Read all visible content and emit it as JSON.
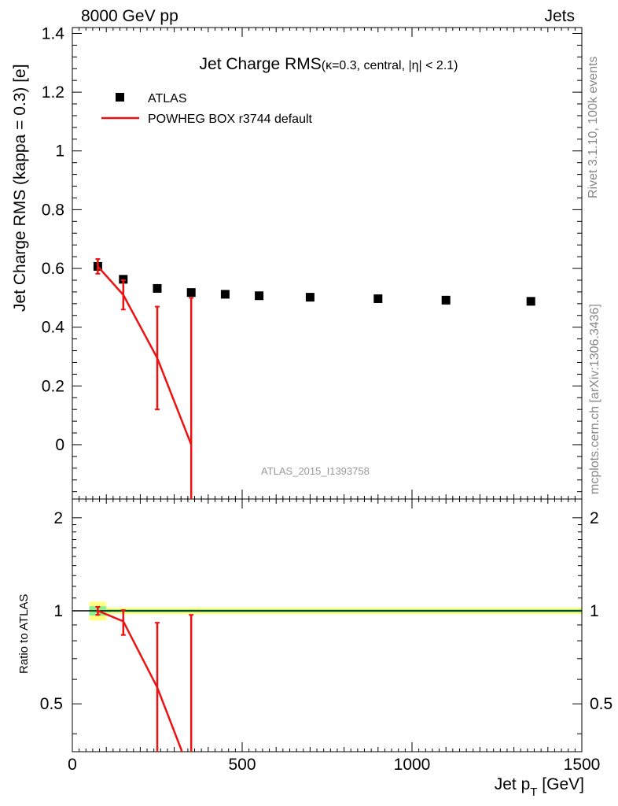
{
  "header": {
    "left": "8000 GeV pp",
    "right": "Jets"
  },
  "side_labels": {
    "rivet": "Rivet 3.1.10,  100k events",
    "mcplots": "mcplots.cern.ch [arXiv:1306.3436]"
  },
  "chart_data": [
    {
      "type": "scatter",
      "panel": "main",
      "title": "Jet Charge RMS",
      "title_suffix": "(κ=0.3, central, |η| < 2.1)",
      "analysis_id": "ATLAS_2015_I1393758",
      "xlabel": "",
      "ylabel": "Jet Charge RMS (kappa = 0.3) [e]",
      "xlim": [
        0,
        1500
      ],
      "ylim": [
        -0.185,
        1.42
      ],
      "y_ticks": [
        0,
        0.2,
        0.4,
        0.6,
        0.8,
        1,
        1.2,
        1.4
      ],
      "y_tick_labels": [
        "0",
        "0.2",
        "0.4",
        "0.6",
        "0.8",
        "1",
        "1.2",
        "1.4"
      ],
      "grid": false,
      "legend_position": "top-left",
      "series": [
        {
          "name": "ATLAS",
          "style": "markers",
          "color": "#000000",
          "points": [
            {
              "x": 75,
              "y": 0.607
            },
            {
              "x": 150,
              "y": 0.563
            },
            {
              "x": 250,
              "y": 0.532
            },
            {
              "x": 350,
              "y": 0.518
            },
            {
              "x": 450,
              "y": 0.512
            },
            {
              "x": 550,
              "y": 0.507
            },
            {
              "x": 700,
              "y": 0.502
            },
            {
              "x": 900,
              "y": 0.497
            },
            {
              "x": 1100,
              "y": 0.492
            },
            {
              "x": 1350,
              "y": 0.488
            }
          ]
        },
        {
          "name": "POWHEG BOX r3744 default",
          "style": "line",
          "color": "#ee1111",
          "points": [
            {
              "x": 75,
              "y": 0.607,
              "err_lo": 0.025,
              "err_hi": 0.025
            },
            {
              "x": 150,
              "y": 0.51,
              "err_lo": 0.05,
              "err_hi": 0.05
            },
            {
              "x": 250,
              "y": 0.295,
              "err_lo": 0.175,
              "err_hi": 0.175
            },
            {
              "x": 350,
              "y": 0.0,
              "err_lo": 0.5,
              "err_hi": 0.5
            }
          ]
        }
      ]
    },
    {
      "type": "line",
      "panel": "ratio",
      "ylabel": "Ratio to ATLAS",
      "xlabel": "Jet p_T [GeV]",
      "xlabel_main": "Jet p",
      "xlabel_sub": "T",
      "xlabel_unit": "[GeV]",
      "xlim": [
        0,
        1500
      ],
      "ylim": [
        0.35,
        2.3
      ],
      "x_ticks": [
        0,
        500,
        1000,
        1500
      ],
      "x_tick_labels": [
        "0",
        "500",
        "1000",
        "1500"
      ],
      "y_ticks": [
        0.5,
        1,
        2
      ],
      "y_tick_labels": [
        "0.5",
        "1",
        "2"
      ],
      "reference_line": 1,
      "uncertainty_band": {
        "color_inner": "#90ee90",
        "color_outer": "#ffff80",
        "bins": [
          {
            "x0": 50,
            "x1": 100,
            "inner": 0.035,
            "outer": 0.07
          },
          {
            "x0": 100,
            "x1": 1500,
            "inner": 0.012,
            "outer": 0.025
          }
        ]
      },
      "series": [
        {
          "name": "POWHEG BOX r3744 default",
          "color": "#ee1111",
          "points": [
            {
              "x": 75,
              "y": 1.0,
              "err_lo": 0.03,
              "err_hi": 0.03
            },
            {
              "x": 150,
              "y": 0.925,
              "err_lo": 0.09,
              "err_hi": 0.08
            },
            {
              "x": 250,
              "y": 0.565,
              "err_lo": 0.4,
              "err_hi": 0.35
            },
            {
              "x": 350,
              "y": 0.0,
              "err_lo": 1.0,
              "err_hi": 0.97
            }
          ]
        }
      ]
    }
  ]
}
